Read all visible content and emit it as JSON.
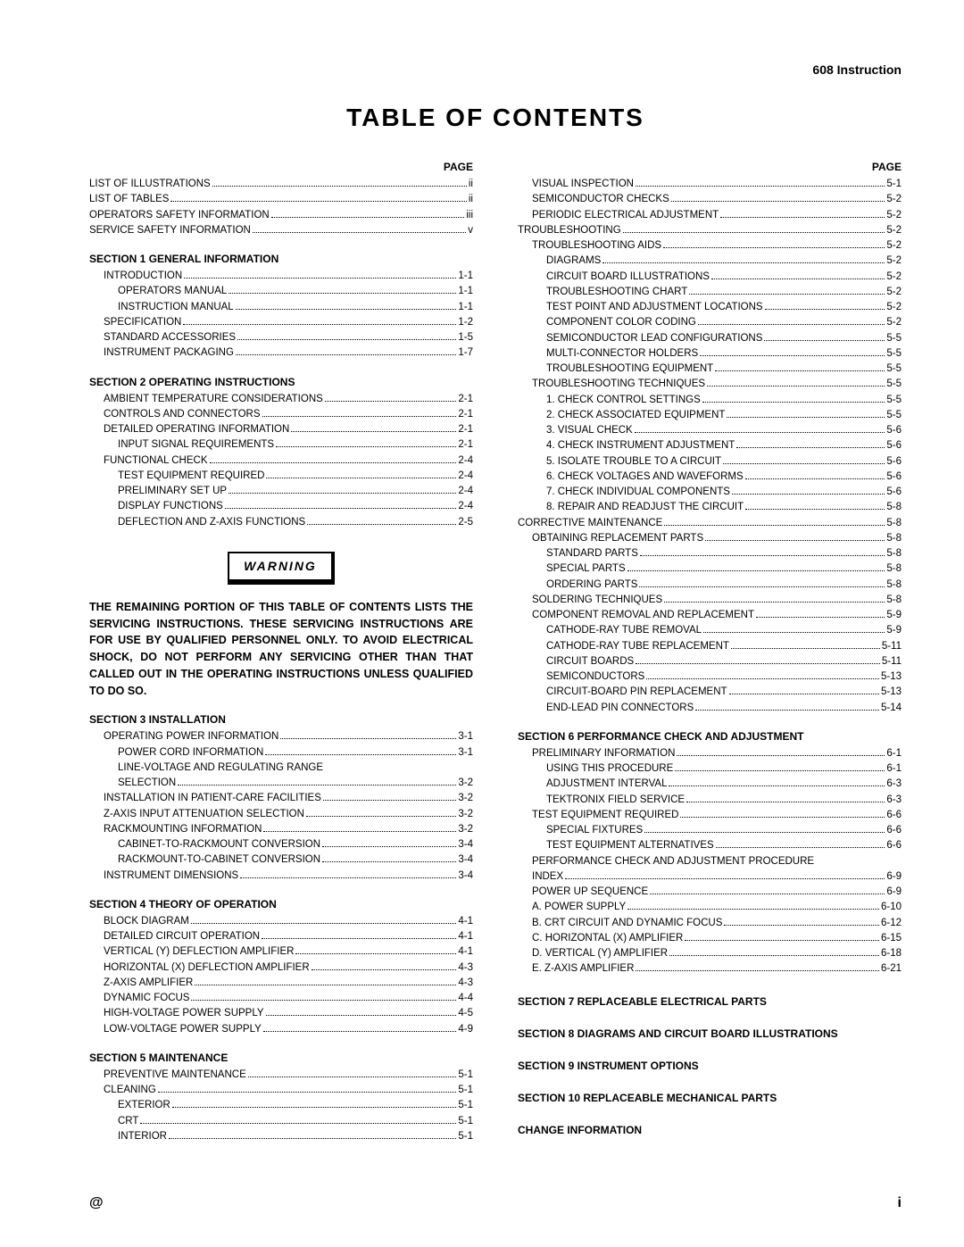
{
  "doc_header": "608 Instruction",
  "title": "TABLE OF CONTENTS",
  "page_label": "PAGE",
  "footer_left": "@",
  "footer_right": "i",
  "warning_label": "WARNING",
  "warning_text": "THE REMAINING PORTION OF THIS TABLE OF CONTENTS LISTS THE SERVICING INSTRUCTIONS. THESE SERVICING INSTRUCTIONS ARE FOR USE BY QUALIFIED PERSONNEL ONLY. TO AVOID ELECTRICAL SHOCK, DO NOT PERFORM ANY SERVICING OTHER THAN THAT CALLED OUT IN THE OPERATING INSTRUCTIONS UNLESS QUALIFIED TO DO SO.",
  "left": [
    {
      "type": "page_hdr"
    },
    {
      "type": "entry",
      "indent": 0,
      "label": "LIST OF ILLUSTRATIONS",
      "pg": "ii"
    },
    {
      "type": "entry",
      "indent": 0,
      "label": "LIST OF TABLES",
      "pg": "ii"
    },
    {
      "type": "entry",
      "indent": 0,
      "label": "OPERATORS SAFETY INFORMATION",
      "pg": "iii"
    },
    {
      "type": "entry",
      "indent": 0,
      "label": "SERVICE SAFETY INFORMATION",
      "pg": "v"
    },
    {
      "type": "head",
      "label": "SECTION 1 GENERAL INFORMATION"
    },
    {
      "type": "entry",
      "indent": 1,
      "label": "INTRODUCTION",
      "pg": "1-1"
    },
    {
      "type": "entry",
      "indent": 2,
      "label": "OPERATORS MANUAL",
      "pg": "1-1"
    },
    {
      "type": "entry",
      "indent": 2,
      "label": "INSTRUCTION MANUAL",
      "pg": "1-1"
    },
    {
      "type": "entry",
      "indent": 1,
      "label": "SPECIFICATION",
      "pg": "1-2"
    },
    {
      "type": "entry",
      "indent": 1,
      "label": "STANDARD ACCESSORIES",
      "pg": "1-5"
    },
    {
      "type": "entry",
      "indent": 1,
      "label": "INSTRUMENT PACKAGING",
      "pg": "1-7"
    },
    {
      "type": "head",
      "label": "SECTION 2 OPERATING INSTRUCTIONS"
    },
    {
      "type": "entry",
      "indent": 1,
      "label": "AMBIENT TEMPERATURE CONSIDERATIONS",
      "pg": "2-1"
    },
    {
      "type": "entry",
      "indent": 1,
      "label": "CONTROLS AND CONNECTORS",
      "pg": "2-1"
    },
    {
      "type": "entry",
      "indent": 1,
      "label": "DETAILED OPERATING INFORMATION",
      "pg": "2-1"
    },
    {
      "type": "entry",
      "indent": 2,
      "label": "INPUT SIGNAL REQUIREMENTS",
      "pg": "2-1"
    },
    {
      "type": "entry",
      "indent": 1,
      "label": "FUNCTIONAL CHECK",
      "pg": "2-4"
    },
    {
      "type": "entry",
      "indent": 2,
      "label": "TEST EQUIPMENT REQUIRED",
      "pg": "2-4"
    },
    {
      "type": "entry",
      "indent": 2,
      "label": "PRELIMINARY SET UP",
      "pg": "2-4"
    },
    {
      "type": "entry",
      "indent": 2,
      "label": "DISPLAY FUNCTIONS",
      "pg": "2-4"
    },
    {
      "type": "entry",
      "indent": 2,
      "label": "DEFLECTION AND Z-AXIS FUNCTIONS",
      "pg": "2-5"
    },
    {
      "type": "warning"
    },
    {
      "type": "head",
      "label": "SECTION 3 INSTALLATION"
    },
    {
      "type": "entry",
      "indent": 1,
      "label": "OPERATING POWER INFORMATION",
      "pg": "3-1"
    },
    {
      "type": "entry",
      "indent": 2,
      "label": "POWER CORD INFORMATION",
      "pg": "3-1"
    },
    {
      "type": "plain",
      "indent": 2,
      "label": "LINE-VOLTAGE AND REGULATING RANGE"
    },
    {
      "type": "entry",
      "indent": 2,
      "label": "SELECTION",
      "pg": "3-2"
    },
    {
      "type": "entry",
      "indent": 1,
      "label": "INSTALLATION IN PATIENT-CARE FACILITIES",
      "pg": "3-2"
    },
    {
      "type": "entry",
      "indent": 1,
      "label": "Z-AXIS INPUT ATTENUATION SELECTION",
      "pg": "3-2"
    },
    {
      "type": "entry",
      "indent": 1,
      "label": "RACKMOUNTING INFORMATION",
      "pg": "3-2"
    },
    {
      "type": "entry",
      "indent": 2,
      "label": "CABINET-TO-RACKMOUNT CONVERSION",
      "pg": "3-4"
    },
    {
      "type": "entry",
      "indent": 2,
      "label": "RACKMOUNT-TO-CABINET CONVERSION",
      "pg": "3-4"
    },
    {
      "type": "entry",
      "indent": 1,
      "label": "INSTRUMENT DIMENSIONS",
      "pg": "3-4"
    },
    {
      "type": "head",
      "label": "SECTION 4 THEORY OF OPERATION"
    },
    {
      "type": "entry",
      "indent": 1,
      "label": "BLOCK DIAGRAM",
      "pg": "4-1"
    },
    {
      "type": "entry",
      "indent": 1,
      "label": "DETAILED CIRCUIT OPERATION",
      "pg": "4-1"
    },
    {
      "type": "entry",
      "indent": 1,
      "label": "VERTICAL (Y) DEFLECTION AMPLIFIER",
      "pg": "4-1"
    },
    {
      "type": "entry",
      "indent": 1,
      "label": "HORIZONTAL (X) DEFLECTION AMPLIFIER",
      "pg": "4-3"
    },
    {
      "type": "entry",
      "indent": 1,
      "label": "Z-AXIS AMPLIFIER",
      "pg": "4-3"
    },
    {
      "type": "entry",
      "indent": 1,
      "label": "DYNAMIC FOCUS",
      "pg": "4-4"
    },
    {
      "type": "entry",
      "indent": 1,
      "label": "HIGH-VOLTAGE POWER SUPPLY",
      "pg": "4-5"
    },
    {
      "type": "entry",
      "indent": 1,
      "label": "LOW-VOLTAGE POWER SUPPLY",
      "pg": "4-9"
    },
    {
      "type": "head",
      "label": "SECTION 5 MAINTENANCE"
    },
    {
      "type": "entry",
      "indent": 1,
      "label": "PREVENTIVE MAINTENANCE",
      "pg": "5-1"
    },
    {
      "type": "entry",
      "indent": 1,
      "label": "CLEANING",
      "pg": "5-1"
    },
    {
      "type": "entry",
      "indent": 2,
      "label": "EXTERIOR",
      "pg": "5-1"
    },
    {
      "type": "entry",
      "indent": 2,
      "label": "CRT",
      "pg": "5-1"
    },
    {
      "type": "entry",
      "indent": 2,
      "label": "INTERIOR",
      "pg": "5-1"
    }
  ],
  "right": [
    {
      "type": "page_hdr"
    },
    {
      "type": "entry",
      "indent": 1,
      "label": "VISUAL INSPECTION",
      "pg": "5-1"
    },
    {
      "type": "entry",
      "indent": 1,
      "label": "SEMICONDUCTOR CHECKS",
      "pg": "5-2"
    },
    {
      "type": "entry",
      "indent": 1,
      "label": "PERIODIC ELECTRICAL ADJUSTMENT",
      "pg": "5-2"
    },
    {
      "type": "entry",
      "indent": 0,
      "label": "TROUBLESHOOTING",
      "pg": "5-2"
    },
    {
      "type": "entry",
      "indent": 1,
      "label": "TROUBLESHOOTING AIDS",
      "pg": "5-2"
    },
    {
      "type": "entry",
      "indent": 2,
      "label": "DIAGRAMS",
      "pg": "5-2"
    },
    {
      "type": "entry",
      "indent": 2,
      "label": "CIRCUIT BOARD ILLUSTRATIONS",
      "pg": "5-2"
    },
    {
      "type": "entry",
      "indent": 2,
      "label": "TROUBLESHOOTING CHART",
      "pg": "5-2"
    },
    {
      "type": "entry",
      "indent": 2,
      "label": "TEST POINT AND ADJUSTMENT LOCATIONS",
      "pg": "5-2"
    },
    {
      "type": "entry",
      "indent": 2,
      "label": "COMPONENT COLOR CODING",
      "pg": "5-2"
    },
    {
      "type": "entry",
      "indent": 2,
      "label": "SEMICONDUCTOR LEAD CONFIGURATIONS",
      "pg": "5-5"
    },
    {
      "type": "entry",
      "indent": 2,
      "label": "MULTI-CONNECTOR HOLDERS",
      "pg": "5-5"
    },
    {
      "type": "entry",
      "indent": 2,
      "label": "TROUBLESHOOTING EQUIPMENT",
      "pg": "5-5"
    },
    {
      "type": "entry",
      "indent": 1,
      "label": "TROUBLESHOOTING TECHNIQUES",
      "pg": "5-5"
    },
    {
      "type": "entry",
      "indent": 2,
      "label": "1.  CHECK CONTROL SETTINGS",
      "pg": "5-5"
    },
    {
      "type": "entry",
      "indent": 2,
      "label": "2.  CHECK ASSOCIATED EQUIPMENT",
      "pg": "5-5"
    },
    {
      "type": "entry",
      "indent": 2,
      "label": "3.  VISUAL CHECK",
      "pg": "5-6"
    },
    {
      "type": "entry",
      "indent": 2,
      "label": "4.  CHECK INSTRUMENT ADJUSTMENT",
      "pg": "5-6"
    },
    {
      "type": "entry",
      "indent": 2,
      "label": "5.  ISOLATE TROUBLE TO A CIRCUIT",
      "pg": "5-6"
    },
    {
      "type": "entry",
      "indent": 2,
      "label": "6.  CHECK VOLTAGES AND WAVEFORMS",
      "pg": "5-6"
    },
    {
      "type": "entry",
      "indent": 2,
      "label": "7.  CHECK INDIVIDUAL COMPONENTS",
      "pg": "5-6"
    },
    {
      "type": "entry",
      "indent": 2,
      "label": "8.  REPAIR AND READJUST THE CIRCUIT",
      "pg": "5-8"
    },
    {
      "type": "entry",
      "indent": 0,
      "label": "CORRECTIVE MAINTENANCE",
      "pg": "5-8"
    },
    {
      "type": "entry",
      "indent": 1,
      "label": "OBTAINING REPLACEMENT PARTS",
      "pg": "5-8"
    },
    {
      "type": "entry",
      "indent": 2,
      "label": "STANDARD PARTS",
      "pg": "5-8"
    },
    {
      "type": "entry",
      "indent": 2,
      "label": "SPECIAL PARTS",
      "pg": "5-8"
    },
    {
      "type": "entry",
      "indent": 2,
      "label": "ORDERING PARTS",
      "pg": "5-8"
    },
    {
      "type": "entry",
      "indent": 1,
      "label": "SOLDERING TECHNIQUES",
      "pg": "5-8"
    },
    {
      "type": "entry",
      "indent": 1,
      "label": "COMPONENT REMOVAL AND REPLACEMENT",
      "pg": "5-9"
    },
    {
      "type": "entry",
      "indent": 2,
      "label": "CATHODE-RAY TUBE REMOVAL",
      "pg": "5-9"
    },
    {
      "type": "entry",
      "indent": 2,
      "label": "CATHODE-RAY TUBE REPLACEMENT",
      "pg": "5-11"
    },
    {
      "type": "entry",
      "indent": 2,
      "label": "CIRCUIT BOARDS",
      "pg": "5-11"
    },
    {
      "type": "entry",
      "indent": 2,
      "label": "SEMICONDUCTORS",
      "pg": "5-13"
    },
    {
      "type": "entry",
      "indent": 2,
      "label": "CIRCUIT-BOARD PIN REPLACEMENT",
      "pg": "5-13"
    },
    {
      "type": "entry",
      "indent": 2,
      "label": "END-LEAD PIN CONNECTORS",
      "pg": "5-14"
    },
    {
      "type": "head",
      "label": "SECTION 6 PERFORMANCE CHECK AND ADJUSTMENT"
    },
    {
      "type": "entry",
      "indent": 1,
      "label": "PRELIMINARY INFORMATION",
      "pg": "6-1"
    },
    {
      "type": "entry",
      "indent": 2,
      "label": "USING THIS PROCEDURE",
      "pg": "6-1"
    },
    {
      "type": "entry",
      "indent": 2,
      "label": "ADJUSTMENT INTERVAL",
      "pg": "6-3"
    },
    {
      "type": "entry",
      "indent": 2,
      "label": "TEKTRONIX FIELD SERVICE",
      "pg": "6-3"
    },
    {
      "type": "entry",
      "indent": 1,
      "label": "TEST EQUIPMENT REQUIRED",
      "pg": "6-6"
    },
    {
      "type": "entry",
      "indent": 2,
      "label": "SPECIAL FIXTURES",
      "pg": "6-6"
    },
    {
      "type": "entry",
      "indent": 2,
      "label": "TEST EQUIPMENT ALTERNATIVES",
      "pg": "6-6"
    },
    {
      "type": "plain",
      "indent": 1,
      "label": "PERFORMANCE CHECK AND ADJUSTMENT PROCEDURE"
    },
    {
      "type": "entry",
      "indent": 1,
      "label": "INDEX",
      "pg": "6-9"
    },
    {
      "type": "entry",
      "indent": 1,
      "label": "POWER UP SEQUENCE",
      "pg": "6-9"
    },
    {
      "type": "entry",
      "indent": 1,
      "label": "A.  POWER SUPPLY",
      "pg": "6-10"
    },
    {
      "type": "entry",
      "indent": 1,
      "label": "B.  CRT CIRCUIT AND DYNAMIC FOCUS",
      "pg": "6-12"
    },
    {
      "type": "entry",
      "indent": 1,
      "label": "C.  HORIZONTAL (X) AMPLIFIER",
      "pg": "6-15"
    },
    {
      "type": "entry",
      "indent": 1,
      "label": "D.  VERTICAL (Y) AMPLIFIER",
      "pg": "6-18"
    },
    {
      "type": "entry",
      "indent": 1,
      "label": "E.  Z-AXIS AMPLIFIER",
      "pg": "6-21"
    },
    {
      "type": "head_alone",
      "label": "SECTION 7 REPLACEABLE ELECTRICAL PARTS"
    },
    {
      "type": "head_alone",
      "label": "SECTION 8 DIAGRAMS AND CIRCUIT BOARD ILLUSTRATIONS"
    },
    {
      "type": "head_alone",
      "label": "SECTION 9 INSTRUMENT OPTIONS"
    },
    {
      "type": "head_alone",
      "label": "SECTION 10 REPLACEABLE MECHANICAL PARTS"
    },
    {
      "type": "head_alone",
      "label": "CHANGE INFORMATION"
    }
  ]
}
